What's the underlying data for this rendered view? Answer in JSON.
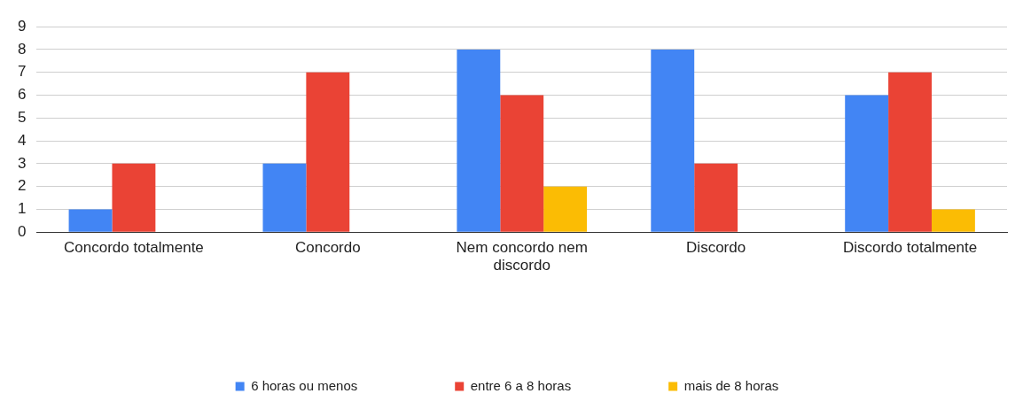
{
  "chart_data": {
    "type": "bar",
    "categories": [
      "Concordo totalmente",
      "Concordo",
      "Nem concordo nem discordo",
      "Discordo",
      "Discordo totalmente"
    ],
    "series": [
      {
        "name": "6 horas ou menos",
        "color": "#4285f4",
        "values": [
          1,
          3,
          8,
          8,
          6
        ]
      },
      {
        "name": "entre 6 a 8 horas",
        "color": "#ea4335",
        "values": [
          3,
          7,
          6,
          3,
          7
        ]
      },
      {
        "name": "mais de 8 horas",
        "color": "#fbbc04",
        "values": [
          0,
          0,
          2,
          0,
          1
        ]
      }
    ],
    "ylim": [
      0,
      9
    ],
    "yticks": [
      0,
      1,
      2,
      3,
      4,
      5,
      6,
      7,
      8,
      9
    ],
    "grid": "y",
    "legend": "bottom"
  }
}
